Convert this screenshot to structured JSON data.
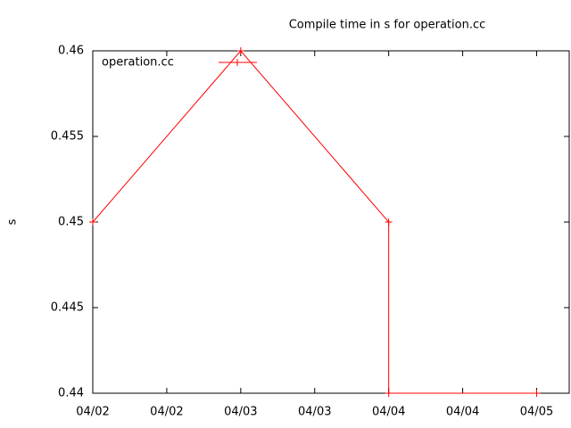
{
  "chart_data": {
    "type": "line",
    "title": "Compile time in s for operation.cc",
    "ylabel": "s",
    "x": [
      2,
      3,
      4,
      4,
      5
    ],
    "series": [
      {
        "name": "operation.cc",
        "color": "#ff0000",
        "values": [
          0.45,
          0.46,
          0.45,
          0.44,
          0.44
        ]
      }
    ],
    "xlim": [
      2,
      5.22
    ],
    "xticks": [
      {
        "value": 2,
        "label": "04/02"
      },
      {
        "value": 2.5,
        "label": "04/02"
      },
      {
        "value": 3,
        "label": "04/03"
      },
      {
        "value": 3.5,
        "label": "04/03"
      },
      {
        "value": 4,
        "label": "04/04"
      },
      {
        "value": 4.5,
        "label": "04/04"
      },
      {
        "value": 5,
        "label": "04/05"
      }
    ],
    "ylim": [
      0.44,
      0.46
    ],
    "yticks": [
      0.44,
      0.445,
      0.45,
      0.455,
      0.46
    ],
    "legend": "top-left"
  }
}
